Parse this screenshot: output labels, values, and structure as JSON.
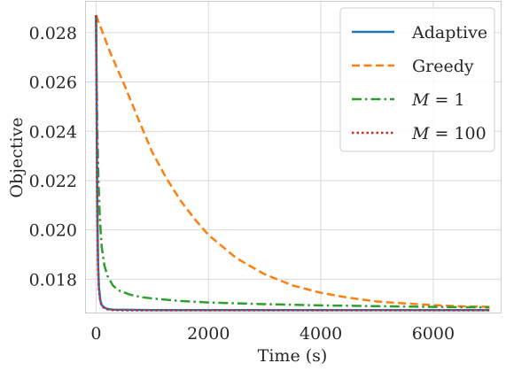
{
  "chart_data": {
    "type": "line",
    "xlabel": "Time (s)",
    "ylabel": "Objective",
    "xlim": [
      -180,
      7200
    ],
    "ylim": [
      0.01665,
      0.02925
    ],
    "xticks": [
      0,
      2000,
      4000,
      6000
    ],
    "xtick_labels": [
      "0",
      "2000",
      "4000",
      "6000"
    ],
    "yticks": [
      0.018,
      0.02,
      0.022,
      0.024,
      0.026,
      0.028
    ],
    "ytick_labels": [
      "0.018",
      "0.020",
      "0.022",
      "0.024",
      "0.026",
      "0.028"
    ],
    "grid": true,
    "legend_position": "top-right",
    "series": [
      {
        "name": "Adaptive",
        "color": "#1f77b4",
        "style": "solid",
        "x": [
          0,
          10,
          20,
          35,
          50,
          75,
          100,
          150,
          200,
          300,
          500,
          1000,
          3000,
          7000
        ],
        "y": [
          0.0287,
          0.0255,
          0.0215,
          0.0188,
          0.0177,
          0.01715,
          0.01695,
          0.01685,
          0.0168,
          0.01677,
          0.01676,
          0.01675,
          0.01675,
          0.01675
        ]
      },
      {
        "name": "Greedy",
        "color": "#ff7f0e",
        "style": "dashed",
        "x": [
          0,
          100,
          250,
          500,
          750,
          1000,
          1250,
          1500,
          1750,
          2000,
          2500,
          3000,
          3500,
          4000,
          4500,
          5000,
          5500,
          6000,
          6500,
          7000
        ],
        "y": [
          0.0287,
          0.0281,
          0.0272,
          0.0259,
          0.0245,
          0.02315,
          0.0221,
          0.0212,
          0.02045,
          0.0198,
          0.01885,
          0.0182,
          0.01775,
          0.01745,
          0.01725,
          0.0171,
          0.01702,
          0.01695,
          0.0169,
          0.01688
        ]
      },
      {
        "name": "M = 1",
        "name_var": "M",
        "name_rest": " = 1",
        "color": "#2ca02c",
        "style": "dashdot",
        "x": [
          0,
          20,
          40,
          60,
          80,
          100,
          150,
          200,
          300,
          400,
          600,
          800,
          1000,
          1500,
          2000,
          3000,
          4000,
          5000,
          6000,
          7000
        ],
        "y": [
          0.0287,
          0.0242,
          0.0222,
          0.0209,
          0.02,
          0.0193,
          0.01855,
          0.01815,
          0.01775,
          0.01755,
          0.01738,
          0.01728,
          0.01722,
          0.01712,
          0.01706,
          0.01699,
          0.01694,
          0.01691,
          0.01688,
          0.01686
        ]
      },
      {
        "name": "M = 100",
        "name_var": "M",
        "name_rest": " = 100",
        "color": "#d62728",
        "style": "dotted",
        "x": [
          0,
          10,
          20,
          35,
          50,
          75,
          100,
          150,
          200,
          300,
          500,
          1000,
          3000,
          7000
        ],
        "y": [
          0.0287,
          0.025,
          0.021,
          0.0185,
          0.01755,
          0.0171,
          0.01692,
          0.01682,
          0.01678,
          0.01675,
          0.01674,
          0.01674,
          0.01674,
          0.01674
        ]
      }
    ]
  }
}
